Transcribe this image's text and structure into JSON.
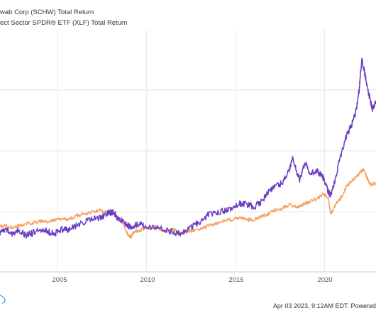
{
  "chart_data": {
    "type": "line",
    "legend": [
      "wab Corp (SCHW) Total Return",
      "ect Sector SPDR® ETF (XLF) Total Return"
    ],
    "x_ticks": [
      "2005",
      "2010",
      "2015",
      "2020"
    ],
    "x_range": [
      2001.75,
      2022.9
    ],
    "y_range": [
      -125,
      650
    ],
    "grid": true,
    "series": [
      {
        "name": "wab Corp (SCHW) Total Return",
        "color": "#6a3ec2",
        "x": [
          2001.75,
          2002.0,
          2002.4,
          2002.8,
          2003.2,
          2003.6,
          2004.0,
          2004.4,
          2004.8,
          2005.2,
          2005.6,
          2006.0,
          2006.5,
          2007.0,
          2007.4,
          2007.8,
          2008.1,
          2008.4,
          2008.7,
          2009.0,
          2009.2,
          2009.6,
          2010.0,
          2010.5,
          2011.0,
          2011.5,
          2011.9,
          2012.4,
          2012.9,
          2013.4,
          2013.9,
          2014.4,
          2014.9,
          2015.3,
          2015.7,
          2016.0,
          2016.4,
          2016.8,
          2017.2,
          2017.6,
          2018.0,
          2018.2,
          2018.6,
          2018.9,
          2019.2,
          2019.6,
          2019.9,
          2020.2,
          2020.35,
          2020.6,
          2020.9,
          2021.2,
          2021.5,
          2021.8,
          2021.95,
          2022.1,
          2022.25,
          2022.4,
          2022.55,
          2022.7,
          2022.9
        ],
        "y": [
          0,
          12,
          -3,
          10,
          -8,
          0,
          10,
          5,
          -3,
          12,
          8,
          22,
          35,
          45,
          48,
          62,
          68,
          45,
          40,
          20,
          22,
          28,
          20,
          18,
          12,
          2,
          0,
          15,
          32,
          55,
          65,
          72,
          80,
          95,
          90,
          82,
          96,
          128,
          150,
          160,
          200,
          238,
          170,
          225,
          190,
          198,
          180,
          135,
          120,
          168,
          245,
          305,
          340,
          395,
          455,
          558,
          515,
          470,
          430,
          395,
          420
        ]
      },
      {
        "name": "ect Sector SPDR® ETF (XLF) Total Return",
        "color": "#f4a161",
        "x": [
          2001.75,
          2002.0,
          2002.4,
          2002.8,
          2003.2,
          2003.6,
          2004.0,
          2004.4,
          2004.8,
          2005.2,
          2005.6,
          2006.0,
          2006.5,
          2007.0,
          2007.4,
          2007.8,
          2008.1,
          2008.4,
          2008.7,
          2008.9,
          2009.1,
          2009.3,
          2009.6,
          2010.0,
          2010.5,
          2011.0,
          2011.5,
          2011.9,
          2012.4,
          2012.9,
          2013.4,
          2013.9,
          2014.4,
          2014.9,
          2015.3,
          2015.7,
          2016.0,
          2016.4,
          2016.8,
          2017.2,
          2017.6,
          2018.0,
          2018.5,
          2018.9,
          2019.2,
          2019.6,
          2019.9,
          2020.2,
          2020.35,
          2020.6,
          2020.9,
          2021.2,
          2021.5,
          2021.8,
          2022.0,
          2022.2,
          2022.4,
          2022.6,
          2022.9
        ],
        "y": [
          20,
          25,
          18,
          22,
          28,
          32,
          38,
          35,
          40,
          45,
          42,
          55,
          60,
          68,
          72,
          65,
          62,
          48,
          30,
          -2,
          -15,
          5,
          8,
          15,
          18,
          5,
          10,
          0,
          5,
          12,
          22,
          30,
          38,
          45,
          48,
          42,
          40,
          52,
          60,
          72,
          78,
          90,
          82,
          95,
          100,
          110,
          125,
          115,
          60,
          88,
          110,
          145,
          165,
          180,
          192,
          205,
          175,
          155,
          160
        ]
      }
    ]
  },
  "footer": "Apr 03 2023, 9:12AM EDT. Powered"
}
